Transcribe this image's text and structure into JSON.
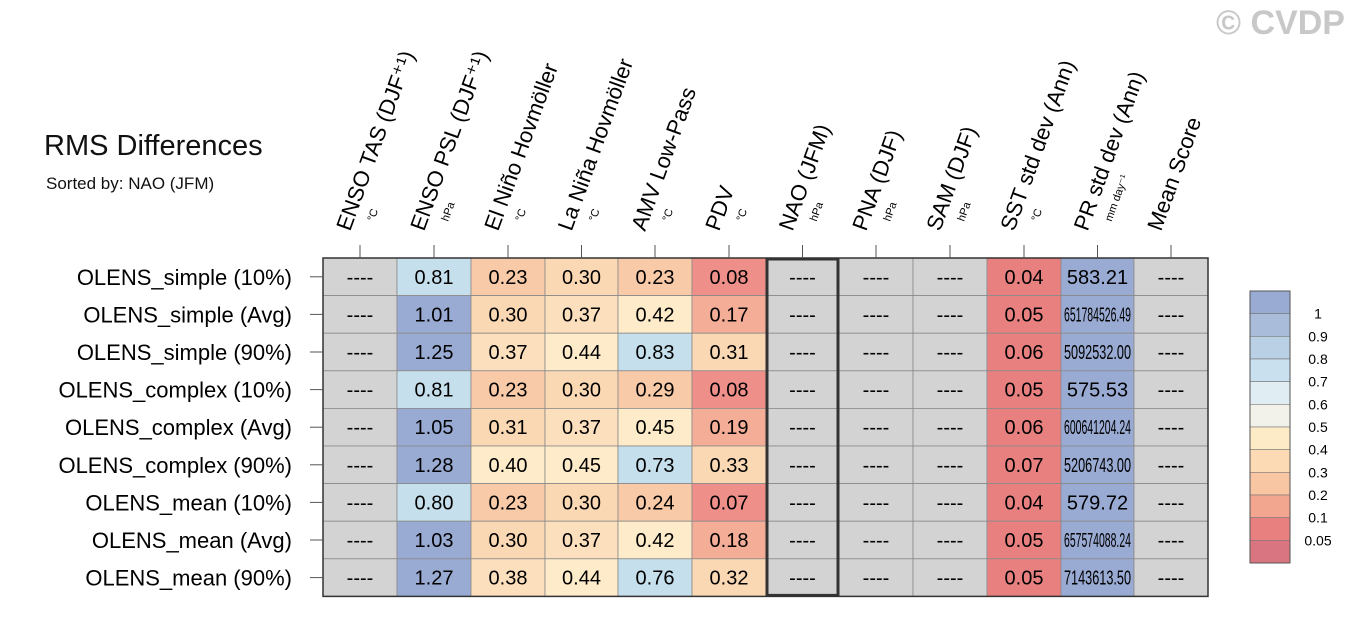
{
  "header": {
    "title": "RMS Differences",
    "subtitle": "Sorted by: NAO (JFM)",
    "watermark": "© CVDP"
  },
  "chart_data": {
    "type": "heatmap",
    "title": "RMS Differences",
    "subtitle": "Sorted by: NAO (JFM)",
    "columns": [
      {
        "label": "ENSO TAS (DJF⁺¹)",
        "unit": "°C"
      },
      {
        "label": "ENSO PSL (DJF⁺¹)",
        "unit": "hPa"
      },
      {
        "label": "El Niño Hovmöller",
        "unit": "°C"
      },
      {
        "label": "La Niña Hovmöller",
        "unit": "°C"
      },
      {
        "label": "AMV Low-Pass",
        "unit": "°C"
      },
      {
        "label": "PDV",
        "unit": "°C"
      },
      {
        "label": "NAO (JFM)",
        "unit": "hPa"
      },
      {
        "label": "PNA (DJF)",
        "unit": "hPa"
      },
      {
        "label": "SAM (DJF)",
        "unit": "hPa"
      },
      {
        "label": "SST std dev (Ann)",
        "unit": "°C"
      },
      {
        "label": "PR std dev (Ann)",
        "unit": "mm day⁻¹"
      },
      {
        "label": "Mean Score",
        "unit": ""
      }
    ],
    "rows": [
      "OLENS_simple (10%)",
      "OLENS_simple (Avg)",
      "OLENS_simple (90%)",
      "OLENS_complex (10%)",
      "OLENS_complex (Avg)",
      "OLENS_complex (90%)",
      "OLENS_mean (10%)",
      "OLENS_mean (Avg)",
      "OLENS_mean (90%)"
    ],
    "cells": [
      [
        {
          "text": "----",
          "color": "#d3d3d3"
        },
        {
          "text": "0.81",
          "color": "#c6dfec"
        },
        {
          "text": "0.23",
          "color": "#f8caa7"
        },
        {
          "text": "0.30",
          "color": "#fad8b3"
        },
        {
          "text": "0.23",
          "color": "#f8caa7"
        },
        {
          "text": "0.08",
          "color": "#ee8f8a"
        },
        {
          "text": "----",
          "color": "#d3d3d3"
        },
        {
          "text": "----",
          "color": "#d3d3d3"
        },
        {
          "text": "----",
          "color": "#d3d3d3"
        },
        {
          "text": "0.04",
          "color": "#e88080"
        },
        {
          "text": "583.21",
          "color": "#99aad3"
        },
        {
          "text": "----",
          "color": "#d3d3d3"
        }
      ],
      [
        {
          "text": "----",
          "color": "#d3d3d3"
        },
        {
          "text": "1.01",
          "color": "#99aad3"
        },
        {
          "text": "0.30",
          "color": "#fad8b3"
        },
        {
          "text": "0.37",
          "color": "#fcdfbd"
        },
        {
          "text": "0.42",
          "color": "#fdebc9"
        },
        {
          "text": "0.17",
          "color": "#f4ad96"
        },
        {
          "text": "----",
          "color": "#d3d3d3"
        },
        {
          "text": "----",
          "color": "#d3d3d3"
        },
        {
          "text": "----",
          "color": "#d3d3d3"
        },
        {
          "text": "0.05",
          "color": "#e88080"
        },
        {
          "text": "651784526.49",
          "color": "#99aad3"
        },
        {
          "text": "----",
          "color": "#d3d3d3"
        }
      ],
      [
        {
          "text": "----",
          "color": "#d3d3d3"
        },
        {
          "text": "1.25",
          "color": "#99aad3"
        },
        {
          "text": "0.37",
          "color": "#fcdfbd"
        },
        {
          "text": "0.44",
          "color": "#fdebc9"
        },
        {
          "text": "0.83",
          "color": "#c6dfec"
        },
        {
          "text": "0.31",
          "color": "#fad8b3"
        },
        {
          "text": "----",
          "color": "#d3d3d3"
        },
        {
          "text": "----",
          "color": "#d3d3d3"
        },
        {
          "text": "----",
          "color": "#d3d3d3"
        },
        {
          "text": "0.06",
          "color": "#e88080"
        },
        {
          "text": "5092532.00",
          "color": "#99aad3"
        },
        {
          "text": "----",
          "color": "#d3d3d3"
        }
      ],
      [
        {
          "text": "----",
          "color": "#d3d3d3"
        },
        {
          "text": "0.81",
          "color": "#c6dfec"
        },
        {
          "text": "0.23",
          "color": "#f8caa7"
        },
        {
          "text": "0.30",
          "color": "#fad8b3"
        },
        {
          "text": "0.29",
          "color": "#f8caa7"
        },
        {
          "text": "0.08",
          "color": "#ee8f8a"
        },
        {
          "text": "----",
          "color": "#d3d3d3"
        },
        {
          "text": "----",
          "color": "#d3d3d3"
        },
        {
          "text": "----",
          "color": "#d3d3d3"
        },
        {
          "text": "0.05",
          "color": "#e88080"
        },
        {
          "text": "575.53",
          "color": "#99aad3"
        },
        {
          "text": "----",
          "color": "#d3d3d3"
        }
      ],
      [
        {
          "text": "----",
          "color": "#d3d3d3"
        },
        {
          "text": "1.05",
          "color": "#99aad3"
        },
        {
          "text": "0.31",
          "color": "#fad8b3"
        },
        {
          "text": "0.37",
          "color": "#fcdfbd"
        },
        {
          "text": "0.45",
          "color": "#fdebc9"
        },
        {
          "text": "0.19",
          "color": "#f4ad96"
        },
        {
          "text": "----",
          "color": "#d3d3d3"
        },
        {
          "text": "----",
          "color": "#d3d3d3"
        },
        {
          "text": "----",
          "color": "#d3d3d3"
        },
        {
          "text": "0.06",
          "color": "#e88080"
        },
        {
          "text": "600641204.24",
          "color": "#99aad3"
        },
        {
          "text": "----",
          "color": "#d3d3d3"
        }
      ],
      [
        {
          "text": "----",
          "color": "#d3d3d3"
        },
        {
          "text": "1.28",
          "color": "#99aad3"
        },
        {
          "text": "0.40",
          "color": "#fdebc9"
        },
        {
          "text": "0.45",
          "color": "#fdebc9"
        },
        {
          "text": "0.73",
          "color": "#c6dfec"
        },
        {
          "text": "0.33",
          "color": "#fad8b3"
        },
        {
          "text": "----",
          "color": "#d3d3d3"
        },
        {
          "text": "----",
          "color": "#d3d3d3"
        },
        {
          "text": "----",
          "color": "#d3d3d3"
        },
        {
          "text": "0.07",
          "color": "#e88080"
        },
        {
          "text": "5206743.00",
          "color": "#99aad3"
        },
        {
          "text": "----",
          "color": "#d3d3d3"
        }
      ],
      [
        {
          "text": "----",
          "color": "#d3d3d3"
        },
        {
          "text": "0.80",
          "color": "#c6dfec"
        },
        {
          "text": "0.23",
          "color": "#f8caa7"
        },
        {
          "text": "0.30",
          "color": "#fad8b3"
        },
        {
          "text": "0.24",
          "color": "#f8caa7"
        },
        {
          "text": "0.07",
          "color": "#ee8f8a"
        },
        {
          "text": "----",
          "color": "#d3d3d3"
        },
        {
          "text": "----",
          "color": "#d3d3d3"
        },
        {
          "text": "----",
          "color": "#d3d3d3"
        },
        {
          "text": "0.04",
          "color": "#e88080"
        },
        {
          "text": "579.72",
          "color": "#99aad3"
        },
        {
          "text": "----",
          "color": "#d3d3d3"
        }
      ],
      [
        {
          "text": "----",
          "color": "#d3d3d3"
        },
        {
          "text": "1.03",
          "color": "#99aad3"
        },
        {
          "text": "0.30",
          "color": "#fad8b3"
        },
        {
          "text": "0.37",
          "color": "#fcdfbd"
        },
        {
          "text": "0.42",
          "color": "#fdebc9"
        },
        {
          "text": "0.18",
          "color": "#f4ad96"
        },
        {
          "text": "----",
          "color": "#d3d3d3"
        },
        {
          "text": "----",
          "color": "#d3d3d3"
        },
        {
          "text": "----",
          "color": "#d3d3d3"
        },
        {
          "text": "0.05",
          "color": "#e88080"
        },
        {
          "text": "657574088.24",
          "color": "#99aad3"
        },
        {
          "text": "----",
          "color": "#d3d3d3"
        }
      ],
      [
        {
          "text": "----",
          "color": "#d3d3d3"
        },
        {
          "text": "1.27",
          "color": "#99aad3"
        },
        {
          "text": "0.38",
          "color": "#fcdfbd"
        },
        {
          "text": "0.44",
          "color": "#fdebc9"
        },
        {
          "text": "0.76",
          "color": "#c6dfec"
        },
        {
          "text": "0.32",
          "color": "#fad8b3"
        },
        {
          "text": "----",
          "color": "#d3d3d3"
        },
        {
          "text": "----",
          "color": "#d3d3d3"
        },
        {
          "text": "----",
          "color": "#d3d3d3"
        },
        {
          "text": "0.05",
          "color": "#e88080"
        },
        {
          "text": "7143613.50",
          "color": "#99aad3"
        },
        {
          "text": "----",
          "color": "#d3d3d3"
        }
      ]
    ],
    "highlight_column": "NAO (JFM)",
    "colorbar": {
      "labels": [
        "1",
        "0.9",
        "0.8",
        "0.7",
        "0.6",
        "0.5",
        "0.4",
        "0.3",
        "0.2",
        "0.1",
        "0.05"
      ],
      "colors": [
        "#99aad3",
        "#a9bddb",
        "#b9d0e5",
        "#c9e0ee",
        "#e0edf2",
        "#f3f2ea",
        "#fdeac7",
        "#fcdbb4",
        "#f9c6a3",
        "#f2a690",
        "#e88080",
        "#d97580"
      ]
    }
  }
}
